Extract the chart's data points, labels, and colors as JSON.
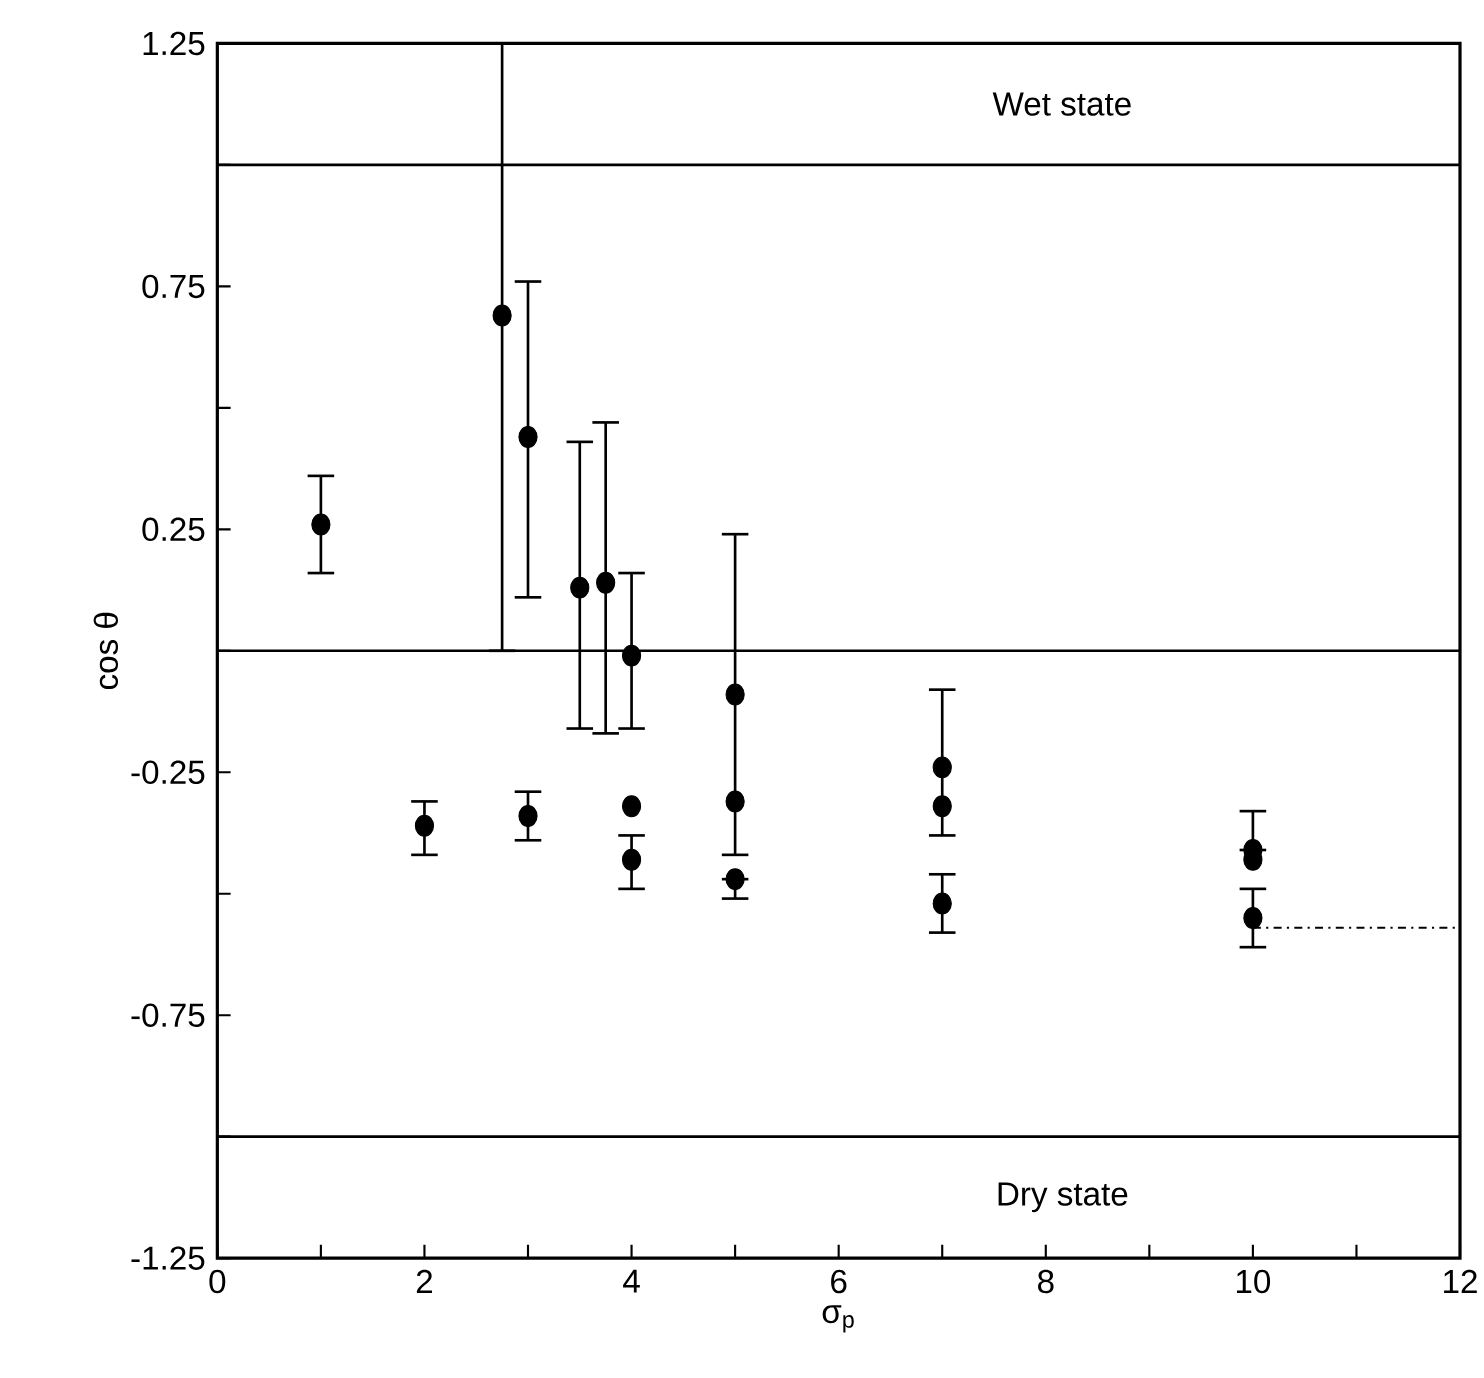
{
  "chart_data": {
    "type": "scatter",
    "xlabel": "σ$_{p}$",
    "ylabel": "cos θ",
    "xlim": [
      0,
      12
    ],
    "ylim": [
      -1.25,
      1.25
    ],
    "xticks": [
      0,
      {
        "value": 1,
        "label": null
      },
      2,
      {
        "value": 3,
        "label": null
      },
      4,
      {
        "value": 5,
        "label": null
      },
      6,
      {
        "value": 7,
        "label": null
      },
      8,
      {
        "value": 9,
        "label": null
      },
      10,
      {
        "value": 11,
        "label": null
      },
      12
    ],
    "yticks": [
      -1.25,
      {
        "value": -1,
        "label": null
      },
      -0.75,
      {
        "value": -0.5,
        "label": null
      },
      -0.25,
      {
        "value": 0,
        "label": null
      },
      0.25,
      {
        "value": 0.5,
        "label": null
      },
      0.75,
      {
        "value": 1,
        "label": null
      },
      1.25
    ],
    "series": [
      {
        "type": "scatter",
        "marker": "circle",
        "color": "#000000",
        "x": [
          1,
          2.75,
          3,
          3.5,
          3.75,
          4,
          5,
          2,
          3,
          4,
          4,
          5,
          5,
          7,
          7,
          7,
          10,
          10,
          10
        ],
        "values": [
          0.26,
          0.69,
          0.44,
          0.13,
          0.14,
          -0.01,
          -0.09,
          -0.36,
          -0.34,
          -0.32,
          -0.43,
          -0.31,
          -0.47,
          -0.24,
          -0.32,
          -0.52,
          -0.41,
          -0.43,
          -0.55
        ],
        "errors": [
          [
            0.16,
            0.36
          ],
          [
            0,
            1.25
          ],
          [
            0.11,
            0.76
          ],
          [
            -0.16,
            0.43
          ],
          [
            -0.17,
            0.47
          ],
          [
            -0.16,
            0.16
          ],
          [
            -0.42,
            0.24
          ],
          [
            -0.42,
            -0.31
          ],
          [
            -0.39,
            -0.29
          ],
          null,
          [
            -0.49,
            -0.38
          ],
          null,
          [
            -0.51,
            -0.47
          ],
          [
            -0.38,
            -0.08
          ],
          null,
          [
            -0.58,
            -0.46
          ],
          [
            -0.41,
            -0.33
          ],
          null,
          [
            -0.61,
            -0.49
          ]
        ]
      },
      {
        "type": "line",
        "color": "#000000",
        "line_style": "dashed",
        "marker": "none",
        "x": [
          10,
          12
        ],
        "values": [
          -0.57,
          -0.57
        ]
      }
    ],
    "ref_lines": [
      {
        "axis": "y",
        "value": 1,
        "label": "Wet state"
      },
      {
        "axis": "y",
        "value": 0
      },
      {
        "axis": "y",
        "value": -1,
        "label": "Dry state"
      }
    ]
  }
}
